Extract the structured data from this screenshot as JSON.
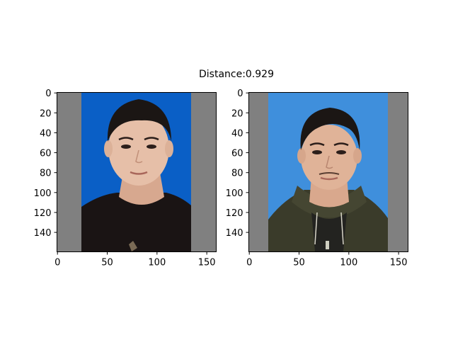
{
  "figure": {
    "title": "Distance:0.929"
  },
  "colors": {
    "background": "#ffffff",
    "padding_gray": "#808080",
    "left_backdrop": "#0a5fc6",
    "right_backdrop": "#3f8fdc",
    "skin": "#e6bfa8",
    "hair": "#1b1614",
    "left_shirt": "#1a1414",
    "right_hoodie": "#3a3b2a"
  },
  "chart_data": [
    {
      "type": "image",
      "name": "",
      "image_size": [
        160,
        160
      ],
      "x_ticks": [
        0,
        50,
        100,
        150
      ],
      "y_ticks": [
        0,
        20,
        40,
        60,
        80,
        100,
        120,
        140
      ],
      "xlim": [
        0,
        160
      ],
      "ylim": [
        160,
        0
      ],
      "content": "face-photo-left"
    },
    {
      "type": "image",
      "name": "",
      "image_size": [
        160,
        160
      ],
      "x_ticks": [
        0,
        50,
        100,
        150
      ],
      "y_ticks": [
        0,
        20,
        40,
        60,
        80,
        100,
        120,
        140
      ],
      "xlim": [
        0,
        160
      ],
      "ylim": [
        160,
        0
      ],
      "content": "face-photo-right"
    }
  ]
}
